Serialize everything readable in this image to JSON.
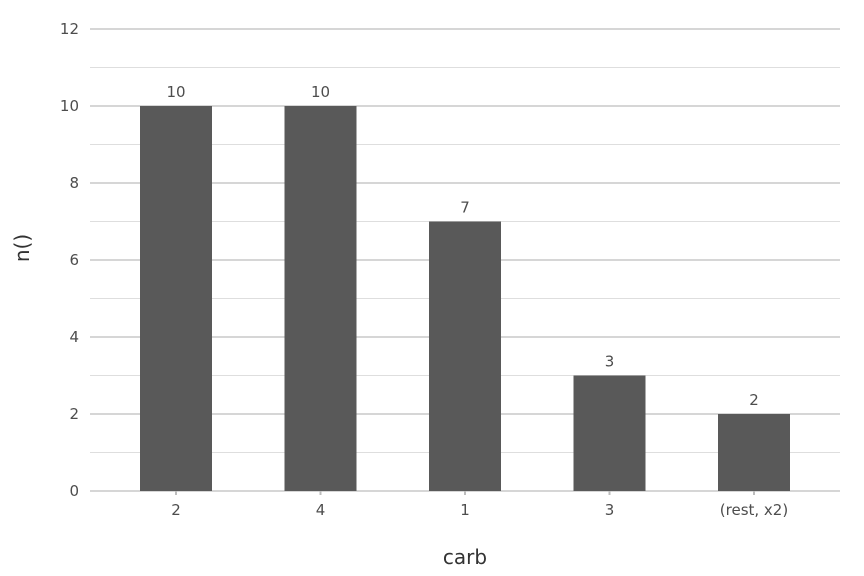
{
  "chart_data": {
    "type": "bar",
    "categories": [
      "2",
      "4",
      "1",
      "3",
      "(rest, x2)"
    ],
    "values": [
      10,
      10,
      7,
      3,
      2
    ],
    "title": "",
    "xlabel": "carb",
    "ylabel": "n()",
    "ylim": [
      0,
      12
    ],
    "yticks": [
      0,
      2,
      4,
      6,
      8,
      10,
      12
    ],
    "grid": true,
    "legend": "none",
    "colors": {
      "bar": "#595959",
      "major_grid": "#bdbdbd",
      "minor_grid": "#dedede",
      "tick": "#bdbdbd"
    }
  }
}
